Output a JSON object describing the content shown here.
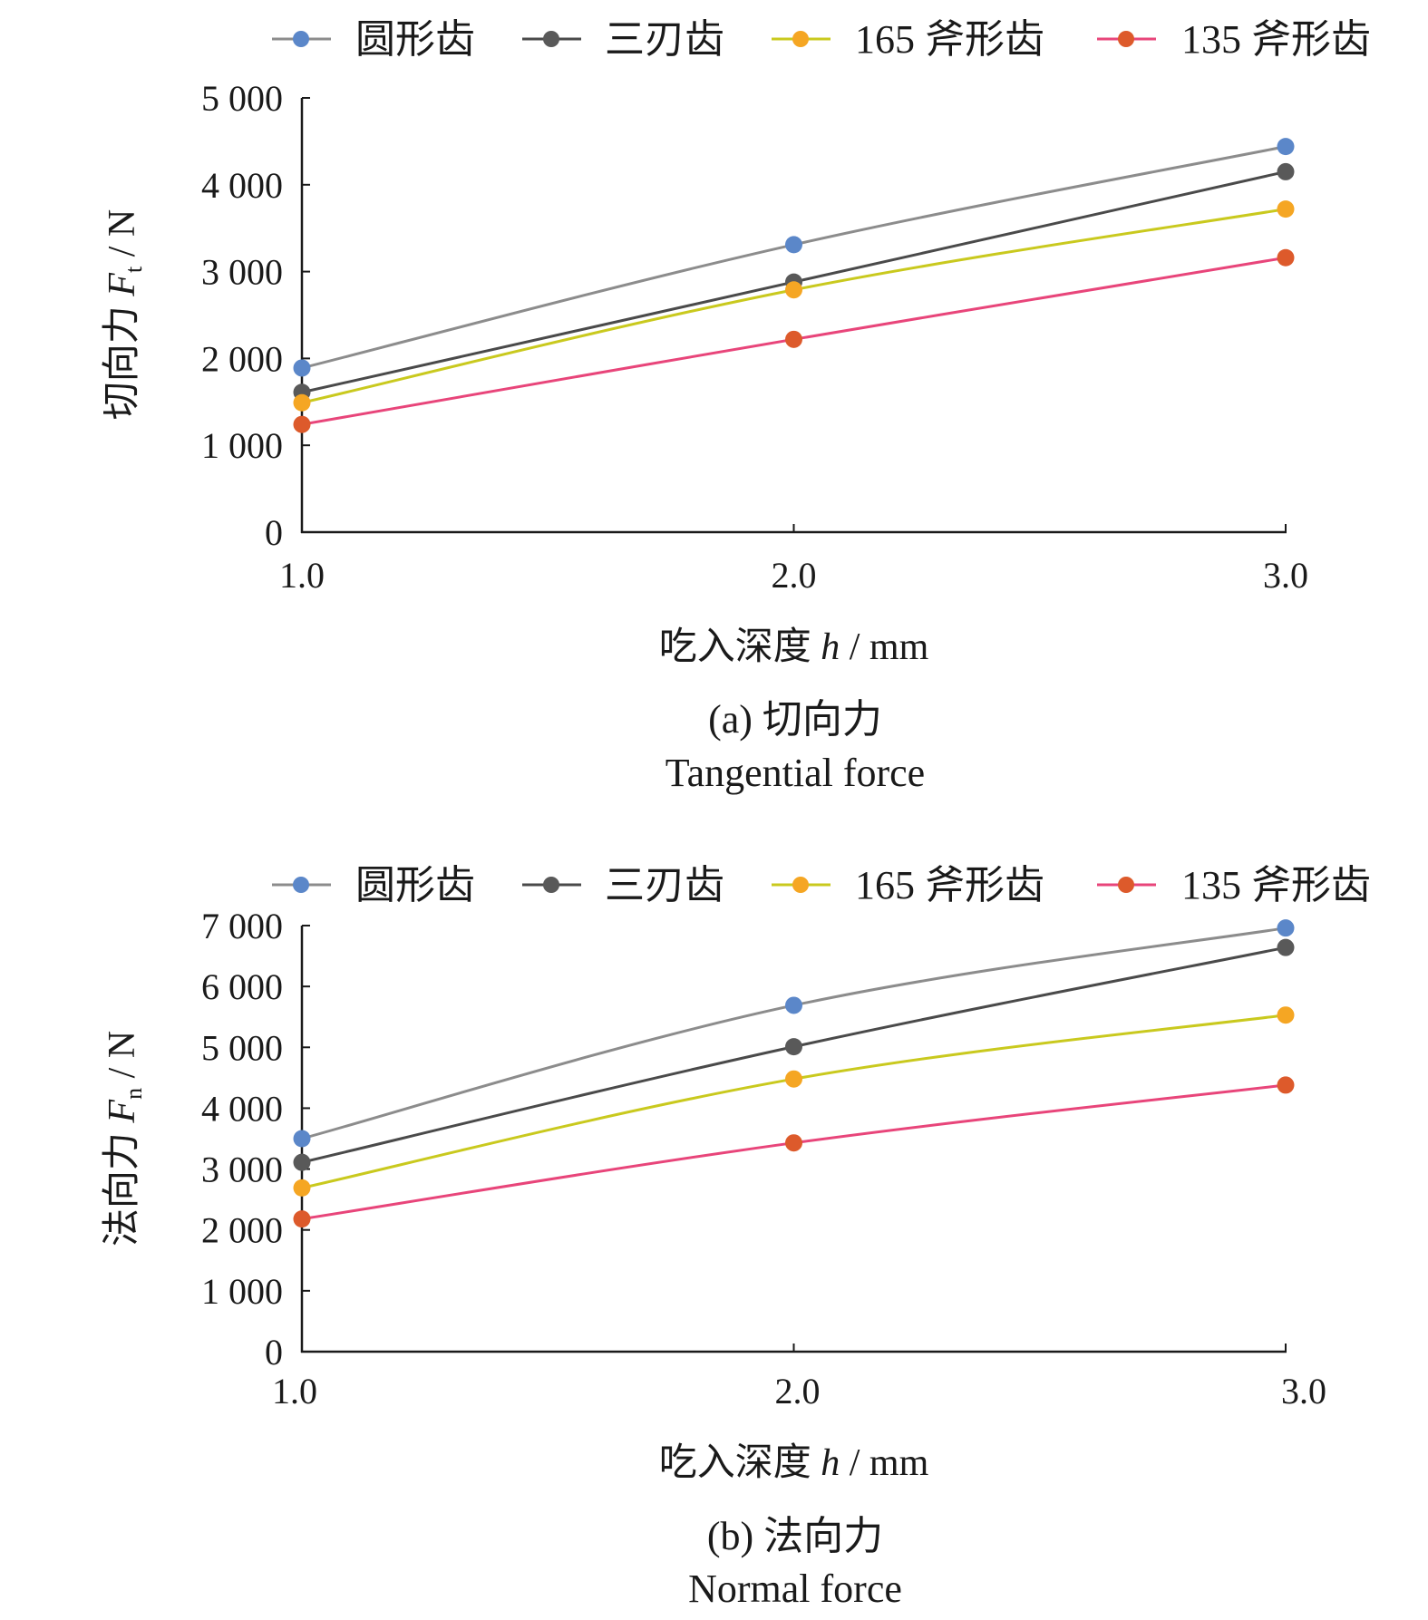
{
  "chart_data": [
    {
      "type": "line",
      "panel_label": "(a) 切向力",
      "panel_label_en": "Tangential force",
      "xlabel_prefix": "吃入深度 ",
      "xlabel_var": "h",
      "xlabel_unit": " / mm",
      "ylabel_prefix": "切向力 ",
      "ylabel_var": "F",
      "ylabel_sub": "t",
      "ylabel_unit": " / N",
      "x": [
        1.0,
        2.0,
        3.0
      ],
      "xticks": [
        "1.0",
        "2.0",
        "3.0"
      ],
      "ylim": [
        0,
        5000
      ],
      "yticks": [
        "0",
        "1 000",
        "2 000",
        "3 000",
        "4 000",
        "5 000"
      ],
      "ytick_values": [
        0,
        1000,
        2000,
        3000,
        4000,
        5000
      ],
      "grid": false,
      "legend_position": "top",
      "series": [
        {
          "name": "圆形齿",
          "values": [
            1890,
            3310,
            4440
          ],
          "line_color": "#8c8c8c",
          "marker_color": "#5b87c9"
        },
        {
          "name": "三刃齿",
          "values": [
            1610,
            2880,
            4150
          ],
          "line_color": "#4a4a4a",
          "marker_color": "#595959"
        },
        {
          "name": "165 斧形齿",
          "values": [
            1490,
            2790,
            3720
          ],
          "line_color": "#c9c91e",
          "marker_color": "#f5a623"
        },
        {
          "name": "135 斧形齿",
          "values": [
            1240,
            2220,
            3160
          ],
          "line_color": "#e8457a",
          "marker_color": "#dd5a2b"
        }
      ]
    },
    {
      "type": "line",
      "panel_label": "(b) 法向力",
      "panel_label_en": "Normal force",
      "xlabel_prefix": "吃入深度 ",
      "xlabel_var": "h",
      "xlabel_unit": " / mm",
      "ylabel_prefix": "法向力 ",
      "ylabel_var": "F",
      "ylabel_sub": "n",
      "ylabel_unit": " / N",
      "x": [
        1.0,
        2.0,
        3.0
      ],
      "xticks": [
        "1.0",
        "2.0",
        "3.0"
      ],
      "ylim": [
        0,
        7000
      ],
      "yticks": [
        "0",
        "1 000",
        "2 000",
        "3 000",
        "4 000",
        "5 000",
        "6 000",
        "7 000"
      ],
      "ytick_values": [
        0,
        1000,
        2000,
        3000,
        4000,
        5000,
        6000,
        7000
      ],
      "grid": false,
      "legend_position": "top",
      "series": [
        {
          "name": "圆形齿",
          "values": [
            3500,
            5690,
            6960
          ],
          "line_color": "#8c8c8c",
          "marker_color": "#5b87c9"
        },
        {
          "name": "三刃齿",
          "values": [
            3110,
            5010,
            6640
          ],
          "line_color": "#4a4a4a",
          "marker_color": "#595959"
        },
        {
          "name": "165 斧形齿",
          "values": [
            2690,
            4480,
            5530
          ],
          "line_color": "#c9c91e",
          "marker_color": "#f5a623"
        },
        {
          "name": "135 斧形齿",
          "values": [
            2180,
            3430,
            4380
          ],
          "line_color": "#e8457a",
          "marker_color": "#dd5a2b"
        }
      ]
    }
  ]
}
